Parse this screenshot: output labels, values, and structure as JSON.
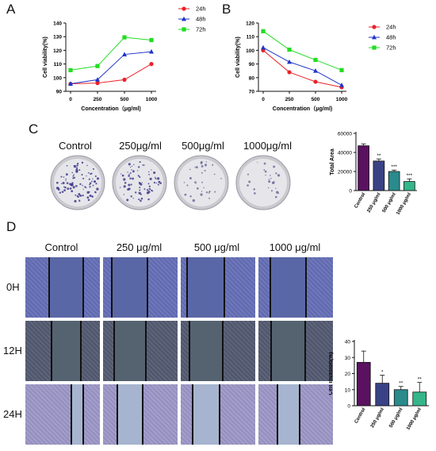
{
  "panels": {
    "A": "A",
    "B": "B",
    "C": "C",
    "D": "D"
  },
  "chart_data": [
    {
      "id": "A",
      "type": "line",
      "x": [
        "0",
        "250",
        "500",
        "1000"
      ],
      "xlabel": "Concentration（μg/ml)",
      "ylabel": "Cell viability(%)",
      "ylim": [
        90,
        140
      ],
      "yticks": [
        90,
        100,
        110,
        120,
        130,
        140
      ],
      "legend_position": "top-right",
      "series": [
        {
          "name": "24h",
          "color": "#e8222a",
          "marker": "circle",
          "values": [
            95.5,
            96,
            98.5,
            110
          ]
        },
        {
          "name": "48h",
          "color": "#1f35c9",
          "marker": "triangle",
          "values": [
            95.5,
            98.5,
            117,
            119
          ]
        },
        {
          "name": "72h",
          "color": "#22dd22",
          "marker": "square",
          "values": [
            105.5,
            108.5,
            129.5,
            127.5
          ]
        }
      ]
    },
    {
      "id": "B",
      "type": "line",
      "x": [
        "0",
        "250",
        "500",
        "1000"
      ],
      "xlabel": "Concentration（μg/ml)",
      "ylabel": "Cell viability(%)",
      "ylim": [
        70,
        120
      ],
      "yticks": [
        70,
        80,
        90,
        100,
        110,
        120
      ],
      "legend_position": "top-right",
      "series": [
        {
          "name": "24h",
          "color": "#e8222a",
          "marker": "circle",
          "values": [
            100,
            84,
            77,
            73
          ]
        },
        {
          "name": "48h",
          "color": "#1f35c9",
          "marker": "triangle",
          "values": [
            102,
            91.5,
            85,
            74.5
          ]
        },
        {
          "name": "72h",
          "color": "#22dd22",
          "marker": "square",
          "values": [
            114,
            100.5,
            93,
            85.5
          ]
        }
      ]
    },
    {
      "id": "C",
      "type": "bar",
      "categories": [
        "Control",
        "250 μg/ml",
        "500 μg/ml",
        "1000 μg/ml"
      ],
      "values": [
        47000,
        31000,
        20000,
        9500
      ],
      "errors": [
        2000,
        2200,
        1500,
        2800
      ],
      "significance": [
        "",
        "**",
        "***",
        "***"
      ],
      "colors": [
        "#5a1160",
        "#3a4286",
        "#2a8a8c",
        "#35b58a"
      ],
      "ylabel": "Total Area",
      "ylim": [
        0,
        60000
      ],
      "yticks": [
        0,
        20000,
        40000,
        60000
      ]
    },
    {
      "id": "D",
      "type": "bar",
      "categories": [
        "Control",
        "250 μg/ml",
        "500 μg/ml",
        "1000 μg/ml"
      ],
      "values": [
        27,
        14,
        10,
        8.5
      ],
      "errors": [
        7,
        5,
        2,
        6
      ],
      "significance": [
        "",
        "*",
        "**",
        "**"
      ],
      "colors": [
        "#5a1160",
        "#3a4286",
        "#2a8a8c",
        "#35b58a"
      ],
      "ylabel": "Cell invasion(%)",
      "ylim": [
        0,
        40
      ],
      "yticks": [
        0,
        10,
        20,
        30,
        40
      ]
    }
  ],
  "colony_assay": {
    "labels": [
      "Control",
      "250μg/ml",
      "500μg/ml",
      "1000μg/ml"
    ],
    "density": [
      1.0,
      0.8,
      0.35,
      0.3
    ]
  },
  "wound_assay": {
    "columns": [
      "Control",
      "250 μg/ml",
      "500 μg/ml",
      "1000 μg/ml"
    ],
    "rows": [
      "0H",
      "12H",
      "24H"
    ],
    "row_style": [
      {
        "cell": "#6670b8",
        "gap": "#5a67a6"
      },
      {
        "cell": "#545b72",
        "gap": "#556270"
      },
      {
        "cell": "#9d98c8",
        "gap": "#a6b4cf"
      }
    ]
  }
}
